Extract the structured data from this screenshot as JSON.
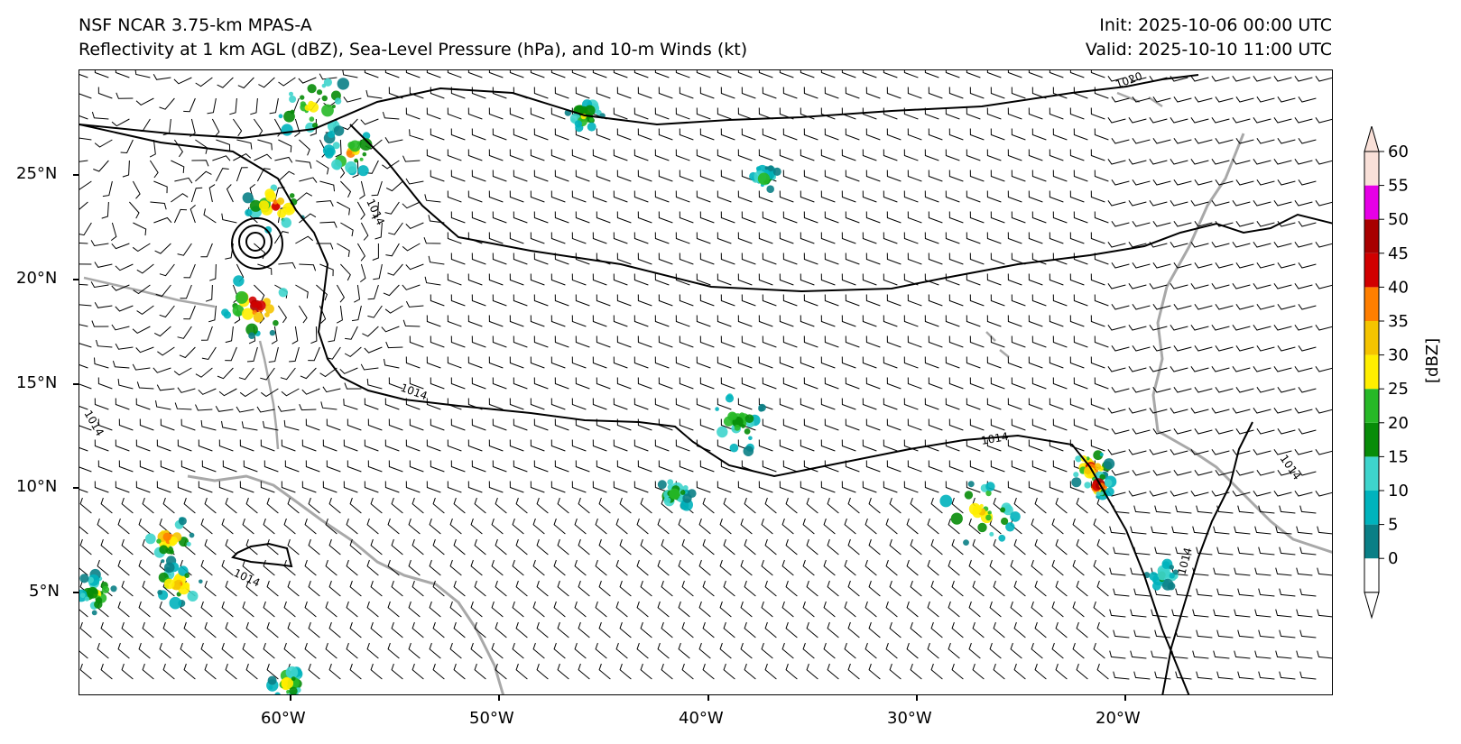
{
  "header": {
    "model_title": "NSF NCAR 3.75-km MPAS-A",
    "field_title": "Reflectivity at 1 km AGL (dBZ), Sea-Level Pressure (hPa), and 10-m Winds (kt)",
    "init_time": "Init: 2025-10-06 00:00 UTC",
    "valid_time": "Valid: 2025-10-10 11:00 UTC"
  },
  "axes": {
    "lat_labels": [
      "25°N",
      "20°N",
      "15°N",
      "10°N",
      "5°N"
    ],
    "lon_labels": [
      "60°W",
      "50°W",
      "40°W",
      "30°W",
      "20°W"
    ],
    "lat_values": [
      25,
      20,
      15,
      10,
      5
    ],
    "lon_values": [
      -60,
      -50,
      -40,
      -30,
      -20
    ],
    "lat_range": [
      0,
      30
    ],
    "lon_range": [
      -70,
      -10
    ]
  },
  "isobars": {
    "labels": [
      "1014",
      "1014",
      "1014",
      "1014",
      "1014",
      "1014",
      "1014",
      "1020"
    ]
  },
  "colorbar": {
    "label": "[dBZ]",
    "ticks": [
      "0",
      "5",
      "10",
      "15",
      "20",
      "25",
      "30",
      "35",
      "40",
      "45",
      "50",
      "55",
      "60"
    ],
    "colors": [
      "#ffffff",
      "#0a7f86",
      "#00b3bd",
      "#3ed4cc",
      "#078c08",
      "#27b927",
      "#ffee00",
      "#f5c400",
      "#ff7f00",
      "#d10000",
      "#a80000",
      "#e600e6",
      "#f9e0d8"
    ],
    "extend": "both"
  },
  "map_style": {
    "coast_color": "#a8a8a8",
    "isobar_color": "#000000",
    "barb_color": "#000000"
  }
}
